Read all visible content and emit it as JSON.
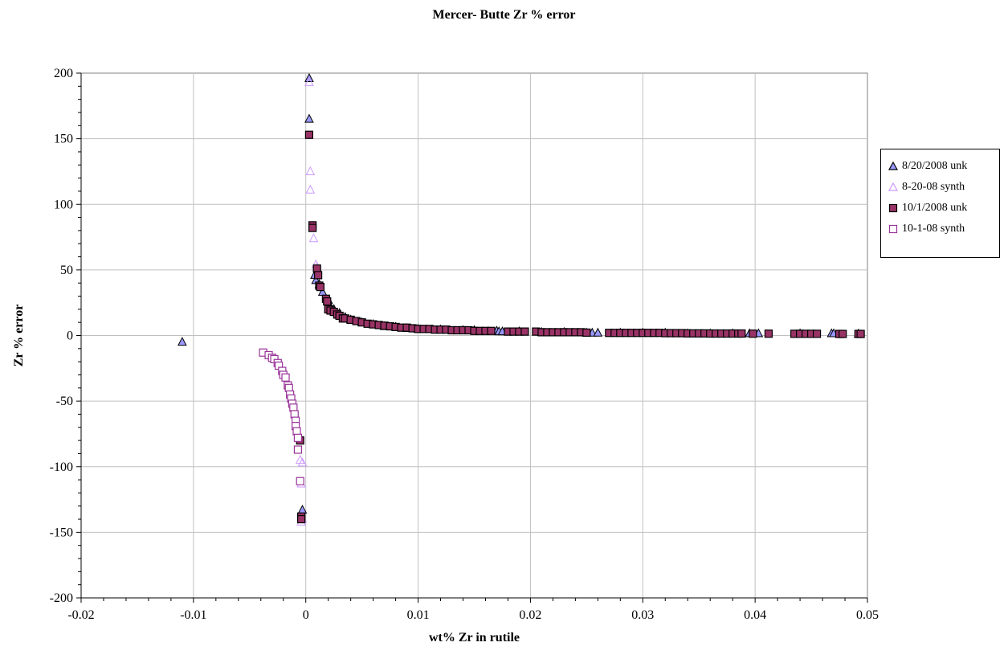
{
  "chart_data": {
    "type": "scatter",
    "title": "Mercer- Butte Zr % error",
    "xlabel": "wt% Zr in rutile",
    "ylabel": "Zr % error",
    "xlim": [
      -0.02,
      0.05
    ],
    "ylim": [
      -200,
      200
    ],
    "x_ticks": [
      "-0.02",
      "-0.01",
      "0",
      "0.01",
      "0.02",
      "0.03",
      "0.04",
      "0.05"
    ],
    "y_ticks": [
      "200",
      "150",
      "100",
      "50",
      "0",
      "-50",
      "-100",
      "-150",
      "-200"
    ],
    "grid": true,
    "legend_position": "right",
    "series": [
      {
        "name": "8/20/2008 unk",
        "marker": "triangle",
        "fill": "#9999ff",
        "stroke": "#000000",
        "points": [
          [
            -0.011,
            -5
          ],
          [
            -0.0003,
            -133
          ],
          [
            0.0003,
            196
          ],
          [
            0.0003,
            165
          ],
          [
            0.0008,
            46
          ],
          [
            0.0009,
            42
          ],
          [
            0.0012,
            39
          ],
          [
            0.0015,
            33
          ],
          [
            0.002,
            27
          ],
          [
            0.0022,
            22
          ],
          [
            0.0025,
            20
          ],
          [
            0.003,
            17
          ],
          [
            0.0035,
            14
          ],
          [
            0.004,
            12
          ],
          [
            0.005,
            10
          ],
          [
            0.006,
            8.5
          ],
          [
            0.007,
            7
          ],
          [
            0.008,
            6.5
          ],
          [
            0.009,
            5.5
          ],
          [
            0.01,
            5
          ],
          [
            0.012,
            4.5
          ],
          [
            0.014,
            4
          ],
          [
            0.015,
            4
          ],
          [
            0.017,
            3.5
          ],
          [
            0.0172,
            3
          ],
          [
            0.0175,
            3
          ],
          [
            0.019,
            3
          ],
          [
            0.021,
            2.5
          ],
          [
            0.023,
            2.5
          ],
          [
            0.025,
            2
          ],
          [
            0.0255,
            2
          ],
          [
            0.026,
            2
          ],
          [
            0.028,
            2
          ],
          [
            0.03,
            2
          ],
          [
            0.032,
            2
          ],
          [
            0.034,
            1.5
          ],
          [
            0.036,
            1.5
          ],
          [
            0.038,
            1.5
          ],
          [
            0.0395,
            1.5
          ],
          [
            0.0403,
            1.5
          ],
          [
            0.044,
            1.5
          ],
          [
            0.0468,
            1.5
          ],
          [
            0.047,
            1.5
          ],
          [
            0.0492,
            1.3
          ]
        ]
      },
      {
        "name": "8-20-08 synth",
        "marker": "triangle-open",
        "fill": "none",
        "stroke": "#cc99ff",
        "points": [
          [
            -0.0005,
            -95
          ],
          [
            -0.0003,
            -97
          ],
          [
            -0.0004,
            -113
          ],
          [
            -0.0003,
            -140
          ],
          [
            -0.0004,
            -142
          ],
          [
            0.0003,
            193
          ],
          [
            0.0004,
            125
          ],
          [
            0.0004,
            111
          ],
          [
            0.0007,
            74
          ],
          [
            0.0009,
            54
          ],
          [
            0.001,
            52
          ]
        ]
      },
      {
        "name": "10/1/2008 unk",
        "marker": "square",
        "fill": "#993366",
        "stroke": "#000000",
        "points": [
          [
            -0.0004,
            -138
          ],
          [
            -0.0004,
            -140
          ],
          [
            -0.0005,
            -80
          ],
          [
            0.0003,
            153
          ],
          [
            0.0006,
            84
          ],
          [
            0.0006,
            82
          ],
          [
            0.001,
            51
          ],
          [
            0.0011,
            46
          ],
          [
            0.0012,
            38
          ],
          [
            0.0013,
            37
          ],
          [
            0.0018,
            28
          ],
          [
            0.0019,
            26
          ],
          [
            0.002,
            20
          ],
          [
            0.0022,
            19
          ],
          [
            0.0025,
            18
          ],
          [
            0.0028,
            16
          ],
          [
            0.003,
            15
          ],
          [
            0.0033,
            13
          ],
          [
            0.0035,
            13
          ],
          [
            0.004,
            12
          ],
          [
            0.0045,
            11
          ],
          [
            0.005,
            10
          ],
          [
            0.0055,
            9
          ],
          [
            0.006,
            8.5
          ],
          [
            0.0065,
            8
          ],
          [
            0.007,
            7.5
          ],
          [
            0.0075,
            7
          ],
          [
            0.008,
            6.5
          ],
          [
            0.0085,
            6
          ],
          [
            0.009,
            6
          ],
          [
            0.0095,
            5.5
          ],
          [
            0.01,
            5
          ],
          [
            0.0105,
            5
          ],
          [
            0.011,
            5
          ],
          [
            0.0115,
            4.5
          ],
          [
            0.012,
            4.5
          ],
          [
            0.0125,
            4.5
          ],
          [
            0.013,
            4
          ],
          [
            0.0135,
            4
          ],
          [
            0.014,
            4
          ],
          [
            0.0145,
            4
          ],
          [
            0.015,
            3.5
          ],
          [
            0.0155,
            3.5
          ],
          [
            0.016,
            3.5
          ],
          [
            0.0165,
            3.5
          ],
          [
            0.018,
            3
          ],
          [
            0.0185,
            3
          ],
          [
            0.019,
            3
          ],
          [
            0.0195,
            3
          ],
          [
            0.0205,
            3
          ],
          [
            0.021,
            2.5
          ],
          [
            0.0215,
            2.5
          ],
          [
            0.022,
            2.5
          ],
          [
            0.0225,
            2.5
          ],
          [
            0.023,
            2.5
          ],
          [
            0.0235,
            2.5
          ],
          [
            0.024,
            2.5
          ],
          [
            0.0245,
            2.5
          ],
          [
            0.025,
            2.2
          ],
          [
            0.027,
            2
          ],
          [
            0.0275,
            2
          ],
          [
            0.028,
            2
          ],
          [
            0.0285,
            2
          ],
          [
            0.029,
            2
          ],
          [
            0.0295,
            2
          ],
          [
            0.03,
            2
          ],
          [
            0.0305,
            2
          ],
          [
            0.031,
            2
          ],
          [
            0.0315,
            2
          ],
          [
            0.032,
            1.8
          ],
          [
            0.0325,
            1.8
          ],
          [
            0.033,
            1.8
          ],
          [
            0.0335,
            1.8
          ],
          [
            0.034,
            1.6
          ],
          [
            0.0345,
            1.6
          ],
          [
            0.035,
            1.6
          ],
          [
            0.0355,
            1.6
          ],
          [
            0.036,
            1.5
          ],
          [
            0.0365,
            1.5
          ],
          [
            0.037,
            1.5
          ],
          [
            0.0375,
            1.5
          ],
          [
            0.038,
            1.5
          ],
          [
            0.0385,
            1.5
          ],
          [
            0.0388,
            1.5
          ],
          [
            0.0398,
            1.4
          ],
          [
            0.0412,
            1.4
          ],
          [
            0.0435,
            1.3
          ],
          [
            0.044,
            1.3
          ],
          [
            0.0445,
            1.3
          ],
          [
            0.045,
            1.3
          ],
          [
            0.0455,
            1.3
          ],
          [
            0.0475,
            1.2
          ],
          [
            0.0478,
            1.2
          ],
          [
            0.0492,
            1.2
          ],
          [
            0.0494,
            1.2
          ]
        ]
      },
      {
        "name": "10-1-08 synth",
        "marker": "square-open",
        "fill": "#ffffff",
        "stroke": "#993399",
        "points": [
          [
            -0.0038,
            -13
          ],
          [
            -0.0033,
            -15
          ],
          [
            -0.003,
            -17
          ],
          [
            -0.0028,
            -18
          ],
          [
            -0.0025,
            -21
          ],
          [
            -0.0024,
            -23
          ],
          [
            -0.0021,
            -27
          ],
          [
            -0.002,
            -30
          ],
          [
            -0.0018,
            -32
          ],
          [
            -0.0016,
            -38
          ],
          [
            -0.0015,
            -40
          ],
          [
            -0.0014,
            -45
          ],
          [
            -0.0013,
            -48
          ],
          [
            -0.0012,
            -52
          ],
          [
            -0.0011,
            -55
          ],
          [
            -0.001,
            -60
          ],
          [
            -0.0009,
            -65
          ],
          [
            -0.0009,
            -69
          ],
          [
            -0.0008,
            -73
          ],
          [
            -0.0007,
            -78
          ],
          [
            -0.0007,
            -87
          ],
          [
            -0.0005,
            -111
          ]
        ]
      }
    ]
  }
}
